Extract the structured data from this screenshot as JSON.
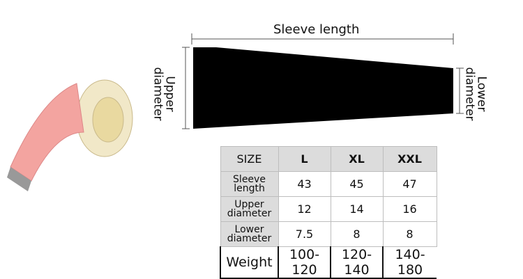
{
  "diagram": {
    "sleeve_length_label": "Sleeve length",
    "upper_diameter_label": [
      "Upper",
      "diameter"
    ],
    "lower_diameter_label": [
      "Lower",
      "diameter"
    ],
    "sleeve_color": "#000000"
  },
  "table": {
    "headers": [
      "SIZE",
      "L",
      "XL",
      "XXL"
    ],
    "rows": [
      {
        "label": [
          "Sleeve",
          "length"
        ],
        "values": [
          "43",
          "45",
          "47"
        ]
      },
      {
        "label": [
          "Upper",
          "diameter"
        ],
        "values": [
          "12",
          "14",
          "16"
        ]
      },
      {
        "label": [
          "Lower",
          "diameter"
        ],
        "values": [
          "7.5",
          "8",
          "8"
        ]
      }
    ],
    "weight": {
      "label": "Weight",
      "values": [
        "100-120",
        "120-140",
        "140-180"
      ]
    }
  }
}
